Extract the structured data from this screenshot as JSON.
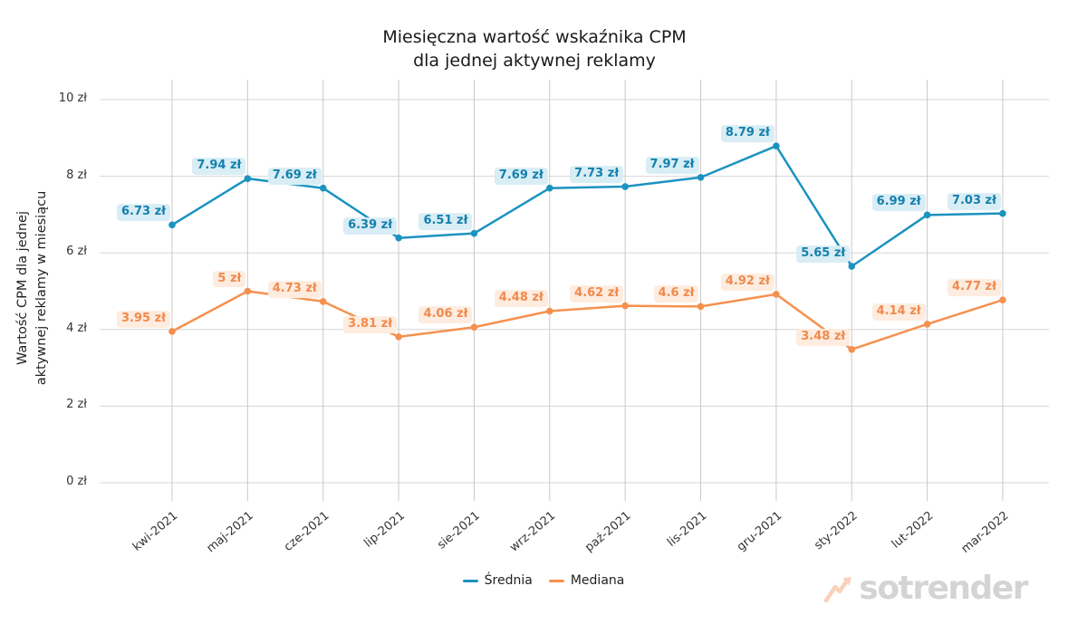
{
  "title": {
    "line1": "Miesięczna wartość wskaźnika CPM",
    "line2": "dla jednej aktywnej reklamy"
  },
  "y_axis": {
    "title_line1": "Wartość CPM dla jednej",
    "title_line2": "aktywnej reklamy w miesiącu",
    "tick_labels": [
      "0 zł",
      "2 zł",
      "4 zł",
      "6 zł",
      "8 zł",
      "10 zł"
    ],
    "tick_values": [
      0,
      2,
      4,
      6,
      8,
      10
    ]
  },
  "chart_data": {
    "type": "line",
    "title": "Miesięczna wartość wskaźnika CPM dla jednej aktywnej reklamy",
    "categories": [
      "kwi-2021",
      "maj-2021",
      "cze-2021",
      "lip-2021",
      "sie-2021",
      "wrz-2021",
      "paź-2021",
      "lis-2021",
      "gru-2021",
      "sty-2022",
      "lut-2022",
      "mar-2022"
    ],
    "series": [
      {
        "name": "Średnia",
        "color": "#1b93c0",
        "label_text_color": "#1480ad",
        "label_bg_color": "#d9edf5",
        "values": [
          6.73,
          7.94,
          7.69,
          6.39,
          6.51,
          7.69,
          7.73,
          7.97,
          8.79,
          5.65,
          6.99,
          7.03
        ],
        "labels": [
          "6.73 zł",
          "7.94 zł",
          "7.69 zł",
          "6.39 zł",
          "6.51 zł",
          "7.69 zł",
          "7.73 zł",
          "7.97 zł",
          "8.79 zł",
          "5.65 zł",
          "6.99 zł",
          "7.03 zł"
        ]
      },
      {
        "name": "Mediana",
        "color": "#f5914e",
        "label_text_color": "#f18a4d",
        "label_bg_color": "#fdecdf",
        "values": [
          3.95,
          5,
          4.73,
          3.81,
          4.06,
          4.48,
          4.62,
          4.6,
          4.92,
          3.48,
          4.14,
          4.77
        ],
        "labels": [
          "3.95 zł",
          "5 zł",
          "4.73 zł",
          "3.81 zł",
          "4.06 zł",
          "4.48 zł",
          "4.62 zł",
          "4.6 zł",
          "4.92 zł",
          "3.48 zł",
          "4.14 zł",
          "4.77 zł"
        ]
      }
    ],
    "unit_suffix": " zł",
    "ylim": [
      0,
      10
    ],
    "yticks": [
      0,
      2,
      4,
      6,
      8,
      10
    ],
    "grid": true,
    "legend_position": "bottom",
    "grid_color_vertical": "#c9c9c9",
    "grid_color_horizontal": "#d6d6d6"
  },
  "legend": {
    "items": [
      {
        "label": "Średnia",
        "color": "#1b93c0"
      },
      {
        "label": "Mediana",
        "color": "#f5914e"
      }
    ]
  },
  "watermark": {
    "text": "sotrender",
    "icon_color": "#f9d1b8",
    "text_color": "#d4d4d4"
  }
}
